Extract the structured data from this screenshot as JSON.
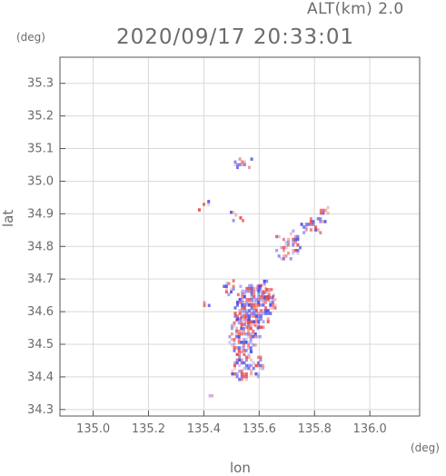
{
  "header": {
    "altitude_label": "ALT(km) 2.0",
    "timestamp": "2020/09/17 20:33:01"
  },
  "chart_data": {
    "type": "heatmap",
    "title": "2020/09/17 20:33:01",
    "subtitle": "ALT(km) 2.0",
    "xlabel": "lon",
    "ylabel": "lat",
    "x_unit": "(deg)",
    "y_unit": "(deg)",
    "xlim": [
      134.88,
      136.18
    ],
    "ylim": [
      34.28,
      35.38
    ],
    "x_ticks": [
      135.0,
      135.2,
      135.4,
      135.6,
      135.8,
      136.0
    ],
    "x_tick_labels": [
      "135.0",
      "135.2",
      "135.4",
      "135.6",
      "135.8",
      "136.0"
    ],
    "y_ticks": [
      34.3,
      34.4,
      34.5,
      34.6,
      34.7,
      34.8,
      34.9,
      35.0,
      35.1,
      35.2,
      35.3
    ],
    "y_tick_labels": [
      "34.3",
      "34.4",
      "34.5",
      "34.6",
      "34.7",
      "34.8",
      "34.9",
      "35.0",
      "35.1",
      "35.2",
      "35.3"
    ],
    "grid": true,
    "colors": {
      "positive": "#e84a4a",
      "negative": "#4a4ae8",
      "axis": "#555555",
      "grid": "#d9d9d9"
    },
    "echo_regions": [
      {
        "lon": 135.55,
        "lat": 34.43,
        "rlon": 0.06,
        "rlat": 0.05,
        "density": 0.55
      },
      {
        "lon": 135.54,
        "lat": 34.52,
        "rlon": 0.06,
        "rlat": 0.06,
        "density": 0.7
      },
      {
        "lon": 135.58,
        "lat": 34.61,
        "rlon": 0.08,
        "rlat": 0.07,
        "density": 0.75
      },
      {
        "lon": 135.5,
        "lat": 34.67,
        "rlon": 0.04,
        "rlat": 0.03,
        "density": 0.55
      },
      {
        "lon": 135.62,
        "lat": 34.66,
        "rlon": 0.04,
        "rlat": 0.03,
        "density": 0.5
      },
      {
        "lon": 135.7,
        "lat": 34.8,
        "rlon": 0.05,
        "rlat": 0.05,
        "density": 0.45
      },
      {
        "lon": 135.79,
        "lat": 34.86,
        "rlon": 0.05,
        "rlat": 0.03,
        "density": 0.4
      },
      {
        "lon": 135.83,
        "lat": 34.91,
        "rlon": 0.02,
        "rlat": 0.02,
        "density": 0.5
      },
      {
        "lon": 135.5,
        "lat": 34.88,
        "rlon": 0.04,
        "rlat": 0.03,
        "density": 0.2
      },
      {
        "lon": 135.54,
        "lat": 35.05,
        "rlon": 0.04,
        "rlat": 0.02,
        "density": 0.45
      },
      {
        "lon": 135.4,
        "lat": 34.92,
        "rlon": 0.03,
        "rlat": 0.02,
        "density": 0.3
      },
      {
        "lon": 135.43,
        "lat": 34.34,
        "rlon": 0.03,
        "rlat": 0.01,
        "density": 0.3
      },
      {
        "lon": 135.4,
        "lat": 34.61,
        "rlon": 0.02,
        "rlat": 0.02,
        "density": 0.25
      }
    ]
  }
}
